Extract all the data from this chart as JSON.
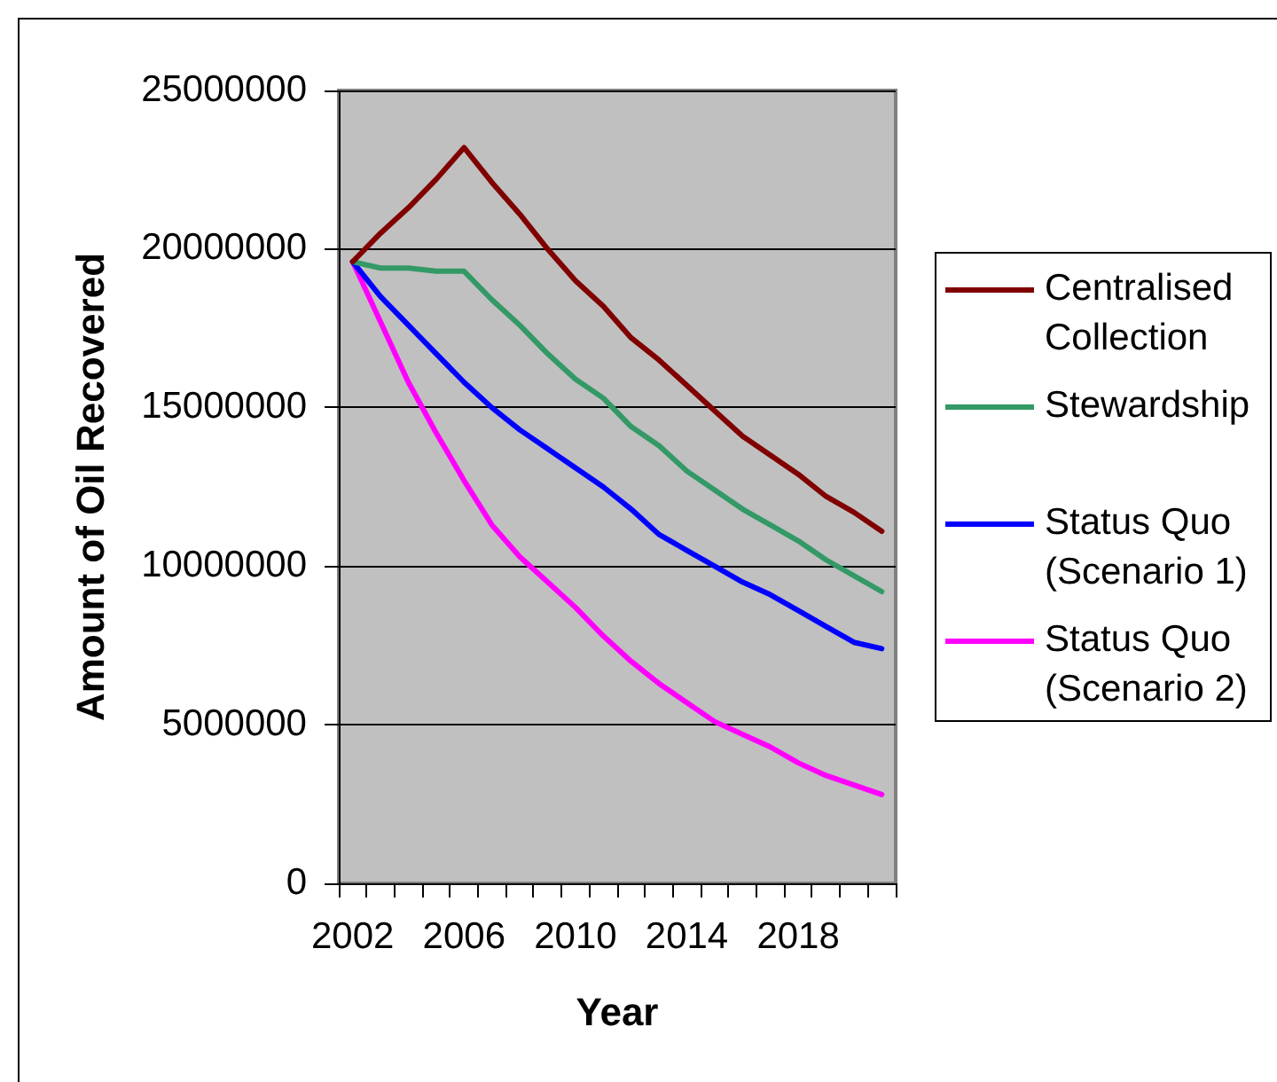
{
  "chart_data": {
    "type": "line",
    "xlabel": "Year",
    "ylabel": "Amount of Oil Recovered",
    "categories": [
      "2002",
      null,
      null,
      null,
      "2006",
      null,
      null,
      null,
      "2010",
      null,
      null,
      null,
      "2014",
      null,
      null,
      null,
      "2018",
      null,
      null,
      null
    ],
    "ylim": [
      0,
      25000000
    ],
    "yticks": [
      0,
      5000000,
      10000000,
      15000000,
      20000000,
      25000000
    ],
    "grid": "y",
    "legend": "right",
    "series": [
      {
        "name": "Centralised Collection",
        "color": "#800000",
        "values": [
          19600000,
          20500000,
          21300000,
          22200000,
          23200000,
          22100000,
          21100000,
          20000000,
          19000000,
          18200000,
          17200000,
          16500000,
          15700000,
          14900000,
          14100000,
          13500000,
          12900000,
          12200000,
          11700000,
          11100000
        ]
      },
      {
        "name": "Stewardship",
        "color": "#339966",
        "values": [
          19600000,
          19400000,
          19400000,
          19300000,
          19300000,
          18400000,
          17600000,
          16700000,
          15900000,
          15300000,
          14400000,
          13800000,
          13000000,
          12400000,
          11800000,
          11300000,
          10800000,
          10200000,
          9700000,
          9200000
        ]
      },
      {
        "name": "Status Quo (Scenario 1)",
        "color": "#0000ff",
        "values": [
          19600000,
          18500000,
          17600000,
          16700000,
          15800000,
          15000000,
          14300000,
          13700000,
          13100000,
          12500000,
          11800000,
          11000000,
          10500000,
          10000000,
          9500000,
          9100000,
          8600000,
          8100000,
          7600000,
          7400000
        ]
      },
      {
        "name": "Status Quo (Scenario 2)",
        "color": "#ff00ff",
        "values": [
          19600000,
          17700000,
          15800000,
          14200000,
          12700000,
          11300000,
          10300000,
          9500000,
          8700000,
          7800000,
          7000000,
          6300000,
          5700000,
          5100000,
          4700000,
          4300000,
          3800000,
          3400000,
          3100000,
          2800000
        ]
      }
    ]
  }
}
